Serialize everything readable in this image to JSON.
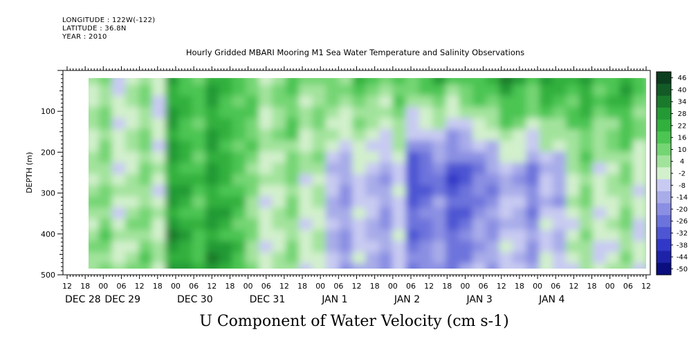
{
  "header": {
    "longitude": "LONGITUDE : 122W(-122)",
    "latitude": "LATITUDE : 36.8N",
    "year": "YEAR : 2010"
  },
  "chart_data": {
    "type": "heatmap",
    "title": "Hourly Gridded MBARI Mooring M1 Sea Water Temperature and Salinity Observations",
    "xlabel": "U Component of Water Velocity (cm s-1)",
    "ylabel": "DEPTH (m)",
    "ylim": [
      500,
      0
    ],
    "y_ticks": [
      100,
      200,
      300,
      400,
      500
    ],
    "x_hour_ticks": [
      "12",
      "18",
      "00",
      "06",
      "12",
      "18",
      "00",
      "06",
      "12",
      "18",
      "00",
      "06",
      "12",
      "18",
      "00",
      "06",
      "12",
      "18",
      "00",
      "06",
      "12",
      "18",
      "00",
      "06",
      "12",
      "18",
      "00",
      "06",
      "12",
      "18",
      "00",
      "06",
      "12"
    ],
    "x_day_labels": [
      "DEC 28",
      "DEC 29",
      "DEC 30",
      "DEC 31",
      "JAN  1",
      "JAN  2",
      "JAN  3",
      "JAN  4"
    ],
    "colorbar": {
      "levels": [
        "46",
        "40",
        "34",
        "28",
        "22",
        "16",
        "10",
        "4",
        "-2",
        "-8",
        "-14",
        "-20",
        "-26",
        "-32",
        "-38",
        "-44",
        "-50"
      ],
      "colors": [
        "#0c3d1e",
        "#125a26",
        "#1a7a2c",
        "#249a35",
        "#31b03e",
        "#4cc552",
        "#74d573",
        "#a2e39c",
        "#d2f0cc",
        "#c8caf2",
        "#a8ace9",
        "#8b8fe3",
        "#6d73dc",
        "#4e55d3",
        "#3138c7",
        "#1d22a8",
        "#0a0e7e"
      ]
    },
    "data_extent": {
      "x_start": "DEC 28 18",
      "x_end": "JAN 4 12",
      "depth_top": 20,
      "depth_bottom": 485
    },
    "velocity_pattern": [
      {
        "period": "DEC 28 18 - DEC 29 18",
        "surface": 4,
        "mid": 6,
        "deep": 8
      },
      {
        "period": "DEC 29 18 - DEC 30 18",
        "surface": 22,
        "mid": 24,
        "deep": 26
      },
      {
        "period": "DEC 30 18 - DEC 31 18",
        "surface": 12,
        "mid": 6,
        "deep": 4
      },
      {
        "period": "DEC 31 18 - JAN 1 12",
        "surface": 16,
        "mid": -8,
        "deep": -10
      },
      {
        "period": "JAN 1 12 - JAN 2 18",
        "surface": 20,
        "mid": -26,
        "deep": -16
      },
      {
        "period": "JAN 2 18 - JAN 3 12",
        "surface": 28,
        "mid": -14,
        "deep": -6
      },
      {
        "period": "JAN 3 12 - JAN 4 12",
        "surface": 24,
        "mid": 4,
        "deep": 2
      }
    ]
  }
}
